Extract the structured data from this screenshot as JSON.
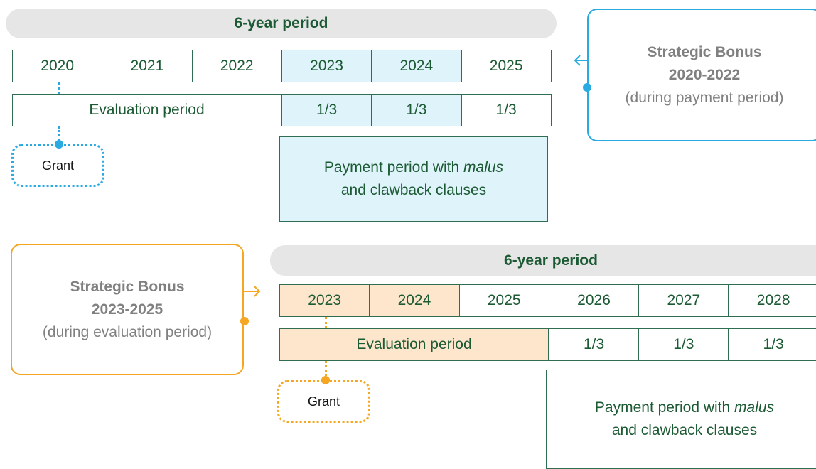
{
  "top": {
    "period": "6-year period",
    "years": [
      "2020",
      "2021",
      "2022",
      "2023",
      "2024",
      "2025"
    ],
    "evaluation": "Evaluation period",
    "shares": [
      "1/3",
      "1/3",
      "1/3"
    ],
    "payment": [
      "Payment period with ",
      "malus",
      "and clawback clauses"
    ],
    "grant": "Grant",
    "bonus": {
      "title": "Strategic Bonus",
      "years": "2020-2022",
      "note": "(during payment period)"
    }
  },
  "bottom": {
    "period": "6-year period",
    "years": [
      "2023",
      "2024",
      "2025",
      "2026",
      "2027",
      "2028"
    ],
    "evaluation": "Evaluation period",
    "shares": [
      "1/3",
      "1/3",
      "1/3"
    ],
    "payment": [
      "Payment period with ",
      "malus",
      "and clawback clauses"
    ],
    "grant": "Grant",
    "bonus": {
      "title": "Strategic Bonus",
      "years": "2023-2025",
      "note": "(during evaluation period)"
    }
  }
}
